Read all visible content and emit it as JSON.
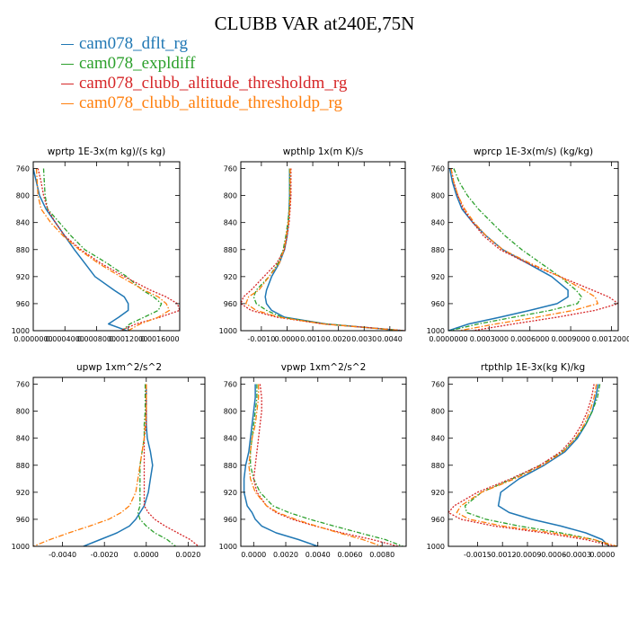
{
  "title": "CLUBB VAR at240E,75N",
  "legend": [
    {
      "name": "cam078_dflt_rg",
      "color": "#1f77b4"
    },
    {
      "name": "cam078_expldiff",
      "color": "#2ca02c"
    },
    {
      "name": "cam078_clubb_altitude_thresholdm_rg",
      "color": "#d62728"
    },
    {
      "name": "cam078_clubb_altitude_thresholdp_rg",
      "color": "#ff7f0e"
    }
  ],
  "chart_data": [
    {
      "type": "line",
      "title": "wprtp   1E-3x(m kg)/(s kg)",
      "xlim": [
        0.0,
        0.00185
      ],
      "ylim": [
        1000,
        750
      ],
      "yticks": [
        760,
        800,
        840,
        880,
        920,
        960,
        1000
      ],
      "xticks": [
        0.0,
        0.0004,
        0.0008,
        0.0012,
        0.0016
      ],
      "xtick_labels": [
        "0.0000000",
        "0.0004000",
        "0.0008000",
        "0.0012000",
        "0.0016000"
      ],
      "y": [
        760,
        780,
        800,
        820,
        840,
        860,
        880,
        900,
        920,
        940,
        950,
        960,
        970,
        980,
        990,
        1000
      ],
      "series": [
        {
          "name": "cam078_dflt_rg",
          "x": [
            0.0,
            4e-05,
            8e-05,
            0.00016,
            0.00028,
            0.0004,
            0.00052,
            0.00065,
            0.00078,
            0.00102,
            0.00115,
            0.0012,
            0.0012,
            0.00108,
            0.00095,
            0.00118
          ]
        },
        {
          "name": "cam078_expldiff",
          "x": [
            0.00013,
            0.00014,
            0.00015,
            0.00018,
            0.00033,
            0.00048,
            0.00065,
            0.00093,
            0.00118,
            0.00138,
            0.00152,
            0.00162,
            0.00158,
            0.0014,
            0.00122,
            0.00112
          ]
        },
        {
          "name": "cam078_clubb_altitude_thresholdm_rg",
          "x": [
            6e-05,
            0.0001,
            0.00013,
            0.00018,
            0.00028,
            0.0004,
            0.0006,
            0.00085,
            0.00115,
            0.00148,
            0.00168,
            0.00182,
            0.00185,
            0.0016,
            0.0013,
            0.0011
          ]
        },
        {
          "name": "cam078_clubb_altitude_thresholdp_rg",
          "x": [
            4e-05,
            5e-05,
            6e-05,
            0.0001,
            0.00022,
            0.00038,
            0.00058,
            0.00082,
            0.0011,
            0.0014,
            0.00158,
            0.00168,
            0.00172,
            0.00158,
            0.00135,
            0.0012
          ]
        }
      ]
    },
    {
      "type": "line",
      "title": "wpthlp   1x(m K)/s",
      "xlim": [
        -0.0018,
        0.0046
      ],
      "ylim": [
        1000,
        750
      ],
      "yticks": [
        760,
        800,
        840,
        880,
        920,
        960,
        1000
      ],
      "xticks": [
        -0.001,
        0.0,
        0.001,
        0.002,
        0.003,
        0.004
      ],
      "xtick_labels": [
        "-0.0010",
        "0.0000",
        "0.0010",
        "0.0020",
        "0.0030",
        "0.0040"
      ],
      "y": [
        760,
        780,
        800,
        820,
        840,
        860,
        880,
        900,
        920,
        940,
        950,
        960,
        970,
        980,
        990,
        1000
      ],
      "series": [
        {
          "name": "cam078_dflt_rg",
          "x": [
            0.0001,
            0.0001,
            0.0001,
            8e-05,
            5e-05,
            0.0,
            -0.0001,
            -0.0003,
            -0.0006,
            -0.0008,
            -0.00085,
            -0.0008,
            -0.0006,
            -0.0001,
            0.0015,
            0.0045
          ]
        },
        {
          "name": "cam078_expldiff",
          "x": [
            0.0001,
            0.0001,
            0.0001,
            8e-05,
            3e-05,
            -5e-05,
            -0.00015,
            -0.00035,
            -0.0007,
            -0.0012,
            -0.0013,
            -0.0012,
            -0.0008,
            -0.0002,
            0.0015,
            0.0045
          ]
        },
        {
          "name": "cam078_clubb_altitude_thresholdm_rg",
          "x": [
            0.00015,
            0.00015,
            0.00015,
            0.00012,
            8e-05,
            0.0,
            -0.0001,
            -0.0004,
            -0.0009,
            -0.0014,
            -0.0017,
            -0.0018,
            -0.0014,
            -0.0004,
            0.0014,
            0.0046
          ]
        },
        {
          "name": "cam078_clubb_altitude_thresholdp_rg",
          "x": [
            0.00012,
            0.00012,
            0.00012,
            0.0001,
            5e-05,
            -3e-05,
            -0.00012,
            -0.0003,
            -0.0007,
            -0.0011,
            -0.0015,
            -0.0016,
            -0.0012,
            -0.0003,
            0.0014,
            0.0045
          ]
        }
      ]
    },
    {
      "type": "line",
      "title": "wprcp   1E-3x(m/s) (kg/kg)",
      "xlim": [
        0.0,
        0.00125
      ],
      "ylim": [
        1000,
        750
      ],
      "yticks": [
        760,
        800,
        840,
        880,
        920,
        960,
        1000
      ],
      "xticks": [
        0.0,
        0.0003,
        0.0006,
        0.0009,
        0.0012
      ],
      "xtick_labels": [
        "0.0000000",
        "0.0003000",
        "0.0006000",
        "0.0009000",
        "0.0012000"
      ],
      "y": [
        760,
        780,
        800,
        820,
        840,
        860,
        880,
        900,
        920,
        940,
        950,
        960,
        970,
        980,
        990,
        1000
      ],
      "series": [
        {
          "name": "cam078_dflt_rg",
          "x": [
            1e-05,
            3e-05,
            6e-05,
            0.0001,
            0.00018,
            0.00028,
            0.0004,
            0.00058,
            0.00076,
            0.00088,
            0.00088,
            0.0008,
            0.0006,
            0.00038,
            0.00015,
            0.0
          ]
        },
        {
          "name": "cam078_expldiff",
          "x": [
            4e-05,
            8e-05,
            0.00014,
            0.00022,
            0.00032,
            0.00042,
            0.00054,
            0.00068,
            0.00082,
            0.00094,
            0.00098,
            0.00095,
            0.00075,
            0.00048,
            0.00022,
            1e-05
          ]
        },
        {
          "name": "cam078_clubb_altitude_thresholdm_rg",
          "x": [
            2e-05,
            4e-05,
            7e-05,
            0.00011,
            0.00018,
            0.00026,
            0.00038,
            0.00058,
            0.00082,
            0.00106,
            0.00118,
            0.00125,
            0.00108,
            0.0008,
            0.00048,
            0.00018
          ]
        },
        {
          "name": "cam078_clubb_altitude_thresholdp_rg",
          "x": [
            2e-05,
            4e-05,
            7e-05,
            0.00012,
            0.00019,
            0.00028,
            0.0004,
            0.0006,
            0.00082,
            0.001,
            0.00108,
            0.0011,
            0.00092,
            0.00065,
            0.00035,
            8e-05
          ]
        }
      ]
    },
    {
      "type": "line",
      "title": "upwp   1xm^2/s^2",
      "xlim": [
        -0.0054,
        0.0028
      ],
      "ylim": [
        1000,
        750
      ],
      "yticks": [
        760,
        800,
        840,
        880,
        920,
        960,
        1000
      ],
      "xticks": [
        -0.004,
        -0.002,
        0.0,
        0.002
      ],
      "xtick_labels": [
        "-0.0040",
        "-0.0020",
        "0.0000",
        "0.0020"
      ],
      "y": [
        760,
        780,
        800,
        820,
        840,
        860,
        880,
        900,
        920,
        940,
        950,
        960,
        970,
        980,
        990,
        1000
      ],
      "series": [
        {
          "name": "cam078_dflt_rg",
          "x": [
            0.0,
            0.0,
            0.0,
            0.0,
            5e-05,
            0.0002,
            0.0003,
            0.0002,
            0.0001,
            -0.0001,
            -0.0003,
            -0.0005,
            -0.0008,
            -0.0014,
            -0.0022,
            -0.003
          ]
        },
        {
          "name": "cam078_expldiff",
          "x": [
            -5e-05,
            -5e-05,
            -5e-05,
            -0.0001,
            -0.0001,
            -0.0002,
            -0.0003,
            -0.0003,
            -0.0003,
            -0.0003,
            -0.0004,
            -0.0003,
            0.0,
            0.0004,
            0.001,
            0.0014
          ]
        },
        {
          "name": "cam078_clubb_altitude_thresholdm_rg",
          "x": [
            0.0,
            0.0,
            0.0,
            0.0,
            -0.0001,
            -0.0001,
            -0.0001,
            -0.0001,
            -0.0001,
            -0.0001,
            0.0001,
            0.0004,
            0.0009,
            0.0015,
            0.0021,
            0.0025
          ]
        },
        {
          "name": "cam078_clubb_altitude_thresholdp_rg",
          "x": [
            0.0,
            0.0,
            0.0,
            -5e-05,
            -0.0001,
            -0.0002,
            -0.0003,
            -0.0004,
            -0.0005,
            -0.0008,
            -0.0012,
            -0.0018,
            -0.0027,
            -0.0037,
            -0.0046,
            -0.0054
          ]
        }
      ]
    },
    {
      "type": "line",
      "title": "vpwp   1xm^2/s^2",
      "xlim": [
        -0.0008,
        0.0095
      ],
      "ylim": [
        1000,
        750
      ],
      "yticks": [
        760,
        800,
        840,
        880,
        920,
        960,
        1000
      ],
      "xticks": [
        0.0,
        0.002,
        0.004,
        0.006,
        0.008
      ],
      "xtick_labels": [
        "0.0000",
        "0.0020",
        "0.0040",
        "0.0060",
        "0.0080"
      ],
      "y": [
        760,
        780,
        800,
        820,
        840,
        860,
        880,
        900,
        920,
        940,
        950,
        960,
        970,
        980,
        990,
        1000
      ],
      "series": [
        {
          "name": "cam078_dflt_rg",
          "x": [
            0.0001,
            0.0001,
            0.0,
            -0.0001,
            -0.0002,
            -0.0003,
            -0.0005,
            -0.0006,
            -0.0006,
            -0.0004,
            -0.0001,
            0.0001,
            0.0005,
            0.0014,
            0.0028,
            0.004
          ]
        },
        {
          "name": "cam078_expldiff",
          "x": [
            0.0002,
            0.0002,
            0.0001,
            0.0,
            -0.0001,
            -0.0002,
            -0.0002,
            0.0,
            0.0004,
            0.0012,
            0.0022,
            0.0035,
            0.005,
            0.0066,
            0.0082,
            0.0093
          ]
        },
        {
          "name": "cam078_clubb_altitude_thresholdm_rg",
          "x": [
            0.0004,
            0.0005,
            0.0005,
            0.0004,
            0.0003,
            0.0002,
            0.0001,
            0.0,
            0.0002,
            0.0008,
            0.0014,
            0.0024,
            0.0038,
            0.0055,
            0.0074,
            0.009
          ]
        },
        {
          "name": "cam078_clubb_altitude_thresholdp_rg",
          "x": [
            0.0003,
            0.0003,
            0.0002,
            0.0001,
            -0.0001,
            -0.0002,
            -0.0003,
            -0.0002,
            0.0001,
            0.0008,
            0.0015,
            0.0026,
            0.0039,
            0.0053,
            0.0068,
            0.008
          ]
        }
      ]
    },
    {
      "type": "line",
      "title": "rtpthlp   1E-3x(kg K)/kg",
      "xlim": [
        -0.00185,
        0.00018
      ],
      "ylim": [
        1000,
        750
      ],
      "yticks": [
        760,
        800,
        840,
        880,
        920,
        960,
        1000
      ],
      "xticks": [
        -0.0015,
        -0.0012,
        -0.0009,
        -0.0006,
        -0.0003,
        0.0
      ],
      "xtick_labels": [
        "-0.0015",
        "-0.0012",
        "-0.0009",
        "-0.0006",
        "-0.0003",
        "0.0000"
      ],
      "y": [
        760,
        780,
        800,
        820,
        840,
        860,
        880,
        900,
        920,
        940,
        950,
        960,
        970,
        980,
        990,
        1000
      ],
      "series": [
        {
          "name": "cam078_dflt_rg",
          "x": [
            -5e-05,
            -8e-05,
            -0.00012,
            -0.0002,
            -0.0003,
            -0.00045,
            -0.0007,
            -0.001,
            -0.00122,
            -0.00125,
            -0.00112,
            -0.00085,
            -0.0005,
            -0.0002,
            0.0,
            8e-05
          ]
        },
        {
          "name": "cam078_expldiff",
          "x": [
            -3e-05,
            -6e-05,
            -0.00012,
            -0.0002,
            -0.00032,
            -0.00048,
            -0.00075,
            -0.00108,
            -0.00145,
            -0.00165,
            -0.00163,
            -0.0014,
            -0.001,
            -0.0005,
            -0.0001,
            0.00012
          ]
        },
        {
          "name": "cam078_clubb_altitude_thresholdm_rg",
          "x": [
            -0.0001,
            -0.00013,
            -0.00018,
            -0.00025,
            -0.00035,
            -0.0005,
            -0.00075,
            -0.0011,
            -0.0015,
            -0.00178,
            -0.00185,
            -0.0017,
            -0.0013,
            -0.0007,
            -0.0002,
            0.00015
          ]
        },
        {
          "name": "cam078_clubb_altitude_thresholdp_rg",
          "x": [
            -7e-05,
            -0.0001,
            -0.00015,
            -0.00022,
            -0.00032,
            -0.00047,
            -0.00072,
            -0.00105,
            -0.00145,
            -0.0017,
            -0.00175,
            -0.0016,
            -0.0012,
            -0.0006,
            -0.0001,
            0.00018
          ]
        }
      ]
    }
  ]
}
